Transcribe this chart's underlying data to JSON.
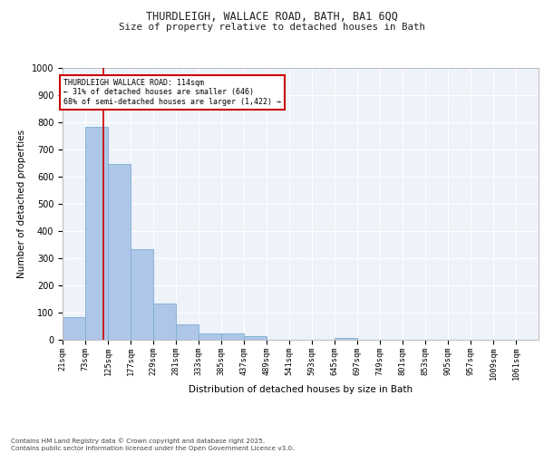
{
  "title1": "THURDLEIGH, WALLACE ROAD, BATH, BA1 6QQ",
  "title2": "Size of property relative to detached houses in Bath",
  "xlabel": "Distribution of detached houses by size in Bath",
  "ylabel": "Number of detached properties",
  "bar_left_edges": [
    21,
    73,
    125,
    177,
    229,
    281,
    333,
    385,
    437,
    489,
    541,
    593,
    645,
    697,
    749,
    801,
    853,
    905,
    957,
    1009
  ],
  "bar_heights": [
    83,
    783,
    648,
    335,
    133,
    58,
    22,
    22,
    15,
    0,
    0,
    0,
    8,
    0,
    0,
    0,
    0,
    0,
    0,
    0
  ],
  "bin_width": 52,
  "bar_color": "#aec6e8",
  "bar_edge_color": "#7bafd4",
  "tick_labels": [
    "21sqm",
    "73sqm",
    "125sqm",
    "177sqm",
    "229sqm",
    "281sqm",
    "333sqm",
    "385sqm",
    "437sqm",
    "489sqm",
    "541sqm",
    "593sqm",
    "645sqm",
    "697sqm",
    "749sqm",
    "801sqm",
    "853sqm",
    "905sqm",
    "957sqm",
    "1009sqm",
    "1061sqm"
  ],
  "property_line_x": 114,
  "property_line_color": "#cc0000",
  "annotation_title": "THURDLEIGH WALLACE ROAD: 114sqm",
  "annotation_line1": "← 31% of detached houses are smaller (646)",
  "annotation_line2": "68% of semi-detached houses are larger (1,422) →",
  "annotation_box_color": "#cc0000",
  "ylim": [
    0,
    1000
  ],
  "xlim": [
    21,
    1113
  ],
  "background_color": "#eef2f9",
  "grid_color": "#ffffff",
  "footer1": "Contains HM Land Registry data © Crown copyright and database right 2025.",
  "footer2": "Contains public sector information licensed under the Open Government Licence v3.0."
}
